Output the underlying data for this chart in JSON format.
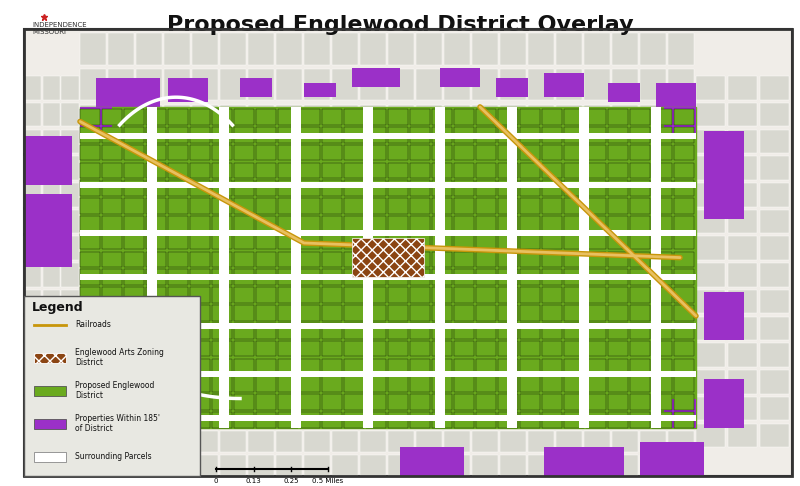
{
  "title": "Proposed Englewood District Overlay",
  "title_fontsize": 16,
  "title_fontweight": "bold",
  "fig_width": 8.0,
  "fig_height": 4.86,
  "dpi": 100,
  "background_color": "#ffffff",
  "map_bg_color": "#f0ede8",
  "border_color": "#333333",
  "colors": {
    "green_district": "#6aaa1e",
    "purple_properties": "#9b30c8",
    "brown_arts": "#8b4513",
    "railroad_color": "#c8960a",
    "railroad_inner": "#e8c060",
    "white_roads": "#ffffff",
    "parcel_outline": "#888888",
    "light_gray_parcels": "#d8d8d0"
  },
  "legend": {
    "title": "Legend",
    "items": [
      {
        "label": "Railroads",
        "type": "line",
        "facecolor": "#c8960a",
        "edgecolor": "none"
      },
      {
        "label": "Englewood Arts Zoning\nDistrict",
        "type": "patch_hatch",
        "facecolor": "#8b4513",
        "hatch": "xxx",
        "edgecolor": "#ffffff"
      },
      {
        "label": "Proposed Englewood\nDistrict",
        "type": "patch",
        "facecolor": "#6aaa1e",
        "edgecolor": "#555555"
      },
      {
        "label": "Properties Within 185'\nof District",
        "type": "patch",
        "facecolor": "#9b30c8",
        "edgecolor": "#555555"
      },
      {
        "label": "Surrounding Parcels",
        "type": "patch",
        "facecolor": "#ffffff",
        "edgecolor": "#888888"
      }
    ]
  },
  "scale_bar": {
    "values": [
      "0",
      "0.13",
      "0.25",
      "0.5 Miles"
    ]
  },
  "logo_text": "INDEPENDENCE\nMISSOURI"
}
